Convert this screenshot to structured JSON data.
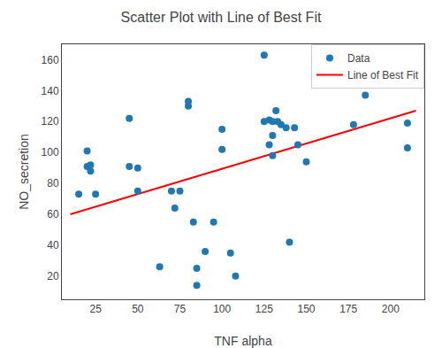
{
  "chart_data": {
    "type": "scatter",
    "title": "Scatter Plot with Line of Best Fit",
    "xlabel": "TNF alpha",
    "ylabel": "NO_secretion",
    "series": [
      {
        "name": "Data",
        "type": "scatter",
        "color": "#1f77b4",
        "x": [
          15,
          20,
          20,
          22,
          22,
          25,
          45,
          45,
          50,
          50,
          63,
          70,
          72,
          75,
          80,
          80,
          83,
          85,
          85,
          90,
          95,
          100,
          100,
          105,
          108,
          125,
          125,
          128,
          128,
          130,
          130,
          130,
          132,
          133,
          135,
          138,
          140,
          143,
          145,
          150,
          178,
          185,
          210,
          210
        ],
        "values": [
          73,
          101,
          91,
          88,
          92,
          73,
          122,
          91,
          75,
          90,
          26,
          75,
          64,
          75,
          133,
          130,
          55,
          25,
          14,
          36,
          55,
          102,
          115,
          35,
          20,
          163,
          120,
          121,
          105,
          98,
          111,
          120,
          127,
          120,
          118,
          116,
          42,
          116,
          105,
          94,
          118,
          137,
          103,
          119
        ]
      },
      {
        "name": "Line of Best Fit",
        "type": "line",
        "color": "red",
        "x": [
          10,
          215
        ],
        "values": [
          60,
          127
        ]
      }
    ],
    "xlim": [
      5,
      220
    ],
    "ylim": [
      5,
      170
    ],
    "xticks": [
      25,
      50,
      75,
      100,
      125,
      150,
      175,
      200
    ],
    "yticks": [
      20,
      40,
      60,
      80,
      100,
      120,
      140,
      160
    ],
    "legend": "upper right",
    "grid": false
  }
}
